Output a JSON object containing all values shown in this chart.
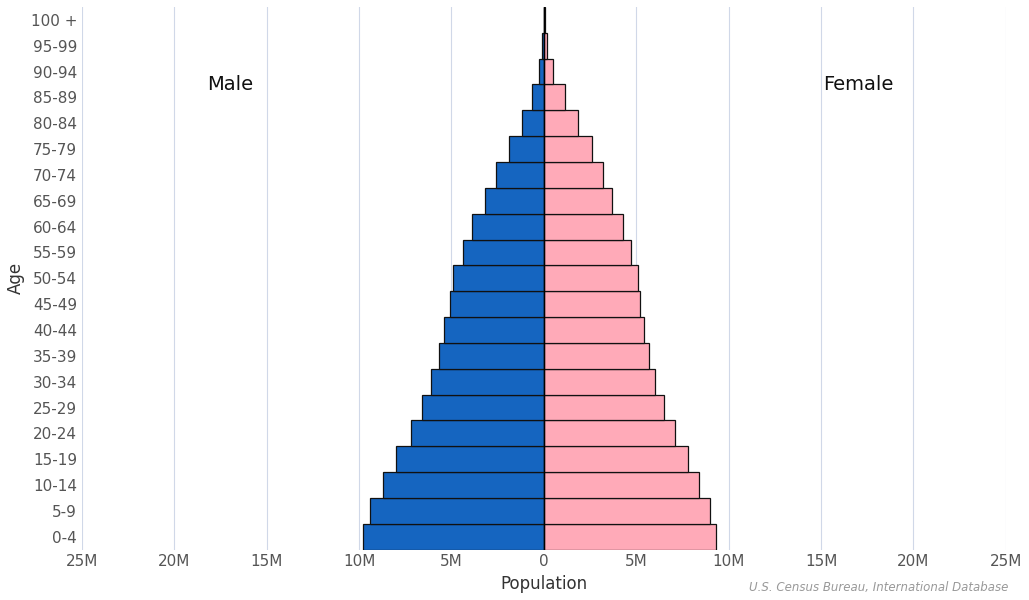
{
  "age_groups": [
    "0-4",
    "5-9",
    "10-14",
    "15-19",
    "20-24",
    "25-29",
    "30-34",
    "35-39",
    "40-44",
    "45-49",
    "50-54",
    "55-59",
    "60-64",
    "65-69",
    "70-74",
    "75-79",
    "80-84",
    "85-89",
    "90-94",
    "95-99",
    "100 +"
  ],
  "male": [
    9.8,
    9.4,
    8.7,
    8.0,
    7.2,
    6.6,
    6.1,
    5.7,
    5.4,
    5.1,
    4.9,
    4.4,
    3.9,
    3.2,
    2.6,
    1.9,
    1.2,
    0.65,
    0.25,
    0.08,
    0.015
  ],
  "female": [
    9.3,
    9.0,
    8.4,
    7.8,
    7.1,
    6.5,
    6.0,
    5.7,
    5.4,
    5.2,
    5.1,
    4.7,
    4.3,
    3.7,
    3.2,
    2.6,
    1.85,
    1.15,
    0.52,
    0.19,
    0.04
  ],
  "male_color": "#1565C0",
  "female_color": "#FFAAB8",
  "edge_color": "#111111",
  "background_color": "#FFFFFF",
  "xlabel": "Population",
  "ylabel": "Age",
  "male_label": "Male",
  "female_label": "Female",
  "source_text": "U.S. Census Bureau, International Database",
  "xlim": 25,
  "xtick_values": [
    -25,
    -20,
    -15,
    -10,
    -5,
    0,
    5,
    10,
    15,
    20,
    25
  ],
  "xtick_labels": [
    "25M",
    "20M",
    "15M",
    "10M",
    "5M",
    "0",
    "5M",
    "10M",
    "15M",
    "20M",
    "25M"
  ],
  "grid_color": "#D0D8E8",
  "bar_height": 1.0,
  "label_fontsize": 12,
  "tick_fontsize": 11
}
